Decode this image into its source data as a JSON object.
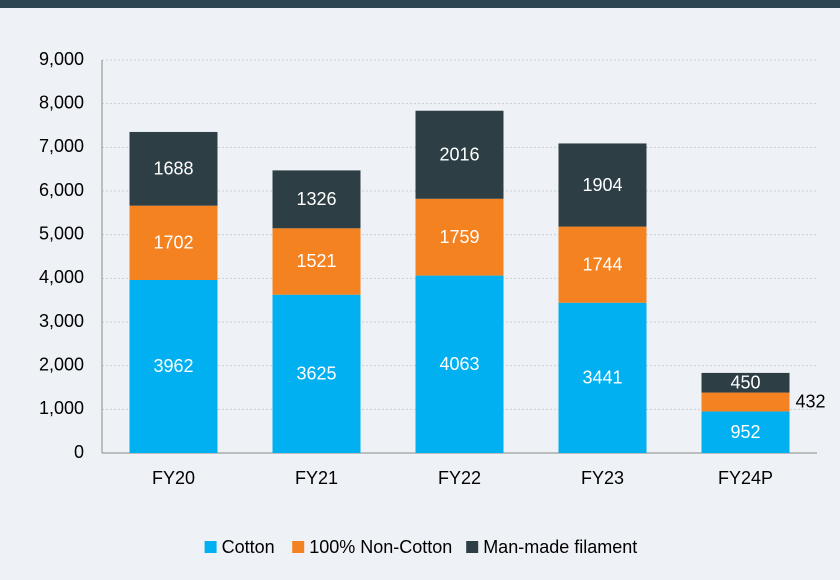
{
  "chart_data": {
    "type": "stacked-bar",
    "categories": [
      "FY20",
      "FY21",
      "FY22",
      "FY23",
      "FY24P"
    ],
    "series": [
      {
        "name": "Cotton",
        "color": "#00b0f0",
        "values": [
          3962,
          3625,
          4063,
          3441,
          952
        ]
      },
      {
        "name": "100% Non-Cotton",
        "color": "#f58220",
        "values": [
          1702,
          1521,
          1759,
          1744,
          432
        ]
      },
      {
        "name": "Man-made filament",
        "color": "#2d3e45",
        "values": [
          1688,
          1326,
          2016,
          1904,
          450
        ]
      }
    ],
    "ylim": [
      0,
      9000
    ],
    "yticks": [
      0,
      {
        "value": 1000,
        "label": "1,000"
      },
      {
        "value": 2000,
        "label": "2,000"
      },
      {
        "value": 3000,
        "label": "3,000"
      },
      {
        "value": 4000,
        "label": "4,000"
      },
      {
        "value": 5000,
        "label": "5,000"
      },
      {
        "value": 6000,
        "label": "6,000"
      },
      {
        "value": 7000,
        "label": "7,000"
      },
      {
        "value": 8000,
        "label": "8,000"
      },
      {
        "value": 9000,
        "label": "9,000"
      }
    ],
    "grid": true,
    "legend": "bottom"
  }
}
